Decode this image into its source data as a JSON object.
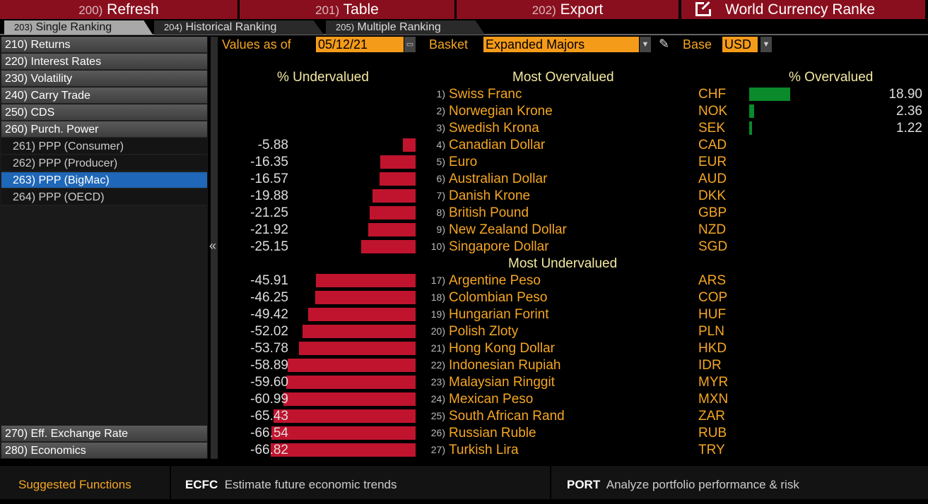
{
  "topbar": {
    "refresh": {
      "num": "200)",
      "label": "Refresh"
    },
    "table": {
      "num": "201)",
      "label": "Table"
    },
    "export": {
      "num": "202)",
      "label": "Export"
    },
    "title": "World Currency Ranke"
  },
  "tabs": [
    {
      "num": "203)",
      "label": "Single Ranking"
    },
    {
      "num": "204)",
      "label": "Historical Ranking"
    },
    {
      "num": "205)",
      "label": "Multiple Ranking"
    }
  ],
  "sidebar": {
    "items": [
      "210) Returns",
      "220) Interest Rates",
      "230) Volatility",
      "240) Carry Trade",
      "250) CDS",
      "260) Purch. Power",
      "261) PPP (Consumer)",
      "262) PPP (Producer)",
      "263) PPP (BigMac)",
      "264) PPP (OECD)",
      "270) Eff. Exchange Rate",
      "280) Economics"
    ],
    "selected": "263) PPP (BigMac)",
    "collapse": "«"
  },
  "controls": {
    "values_as_of_label": "Values as of",
    "date": "05/12/21",
    "basket_label": "Basket",
    "basket": "Expanded Majors",
    "base_label": "Base",
    "base": "USD"
  },
  "headers": {
    "undervalued": "% Undervalued",
    "most_overvalued": "Most Overvalued",
    "overvalued": "% Overvalued",
    "most_undervalued": "Most Undervalued"
  },
  "colors": {
    "positive": "#0a8a2a",
    "negative": "#c0142e",
    "accent": "#f5a623"
  },
  "rows": [
    {
      "rank": "1)",
      "name": "Swiss Franc",
      "code": "CHF",
      "value": 18.9
    },
    {
      "rank": "2)",
      "name": "Norwegian Krone",
      "code": "NOK",
      "value": 2.36
    },
    {
      "rank": "3)",
      "name": "Swedish Krona",
      "code": "SEK",
      "value": 1.22
    },
    {
      "rank": "4)",
      "name": "Canadian Dollar",
      "code": "CAD",
      "value": -5.88
    },
    {
      "rank": "5)",
      "name": "Euro",
      "code": "EUR",
      "value": -16.35
    },
    {
      "rank": "6)",
      "name": "Australian Dollar",
      "code": "AUD",
      "value": -16.57
    },
    {
      "rank": "7)",
      "name": "Danish Krone",
      "code": "DKK",
      "value": -19.88
    },
    {
      "rank": "8)",
      "name": "British Pound",
      "code": "GBP",
      "value": -21.25
    },
    {
      "rank": "9)",
      "name": "New Zealand Dollar",
      "code": "NZD",
      "value": -21.92
    },
    {
      "rank": "10)",
      "name": "Singapore Dollar",
      "code": "SGD",
      "value": -25.15
    },
    {
      "rank": "17)",
      "name": "Argentine Peso",
      "code": "ARS",
      "value": -45.91
    },
    {
      "rank": "18)",
      "name": "Colombian Peso",
      "code": "COP",
      "value": -46.25
    },
    {
      "rank": "19)",
      "name": "Hungarian Forint",
      "code": "HUF",
      "value": -49.42
    },
    {
      "rank": "20)",
      "name": "Polish Zloty",
      "code": "PLN",
      "value": -52.02
    },
    {
      "rank": "21)",
      "name": "Hong Kong Dollar",
      "code": "HKD",
      "value": -53.78
    },
    {
      "rank": "22)",
      "name": "Indonesian Rupiah",
      "code": "IDR",
      "value": -58.89
    },
    {
      "rank": "23)",
      "name": "Malaysian Ringgit",
      "code": "MYR",
      "value": -59.6
    },
    {
      "rank": "24)",
      "name": "Mexican Peso",
      "code": "MXN",
      "value": -60.99
    },
    {
      "rank": "25)",
      "name": "South African Rand",
      "code": "ZAR",
      "value": -65.43
    },
    {
      "rank": "26)",
      "name": "Russian Ruble",
      "code": "RUB",
      "value": -66.54
    },
    {
      "rank": "27)",
      "name": "Turkish Lira",
      "code": "TRY",
      "value": -66.82
    }
  ],
  "footer": {
    "suggested": "Suggested Functions",
    "f1_code": "ECFC",
    "f1_desc": "Estimate future economic trends",
    "f2_code": "PORT",
    "f2_desc": "Analyze portfolio performance & risk"
  }
}
